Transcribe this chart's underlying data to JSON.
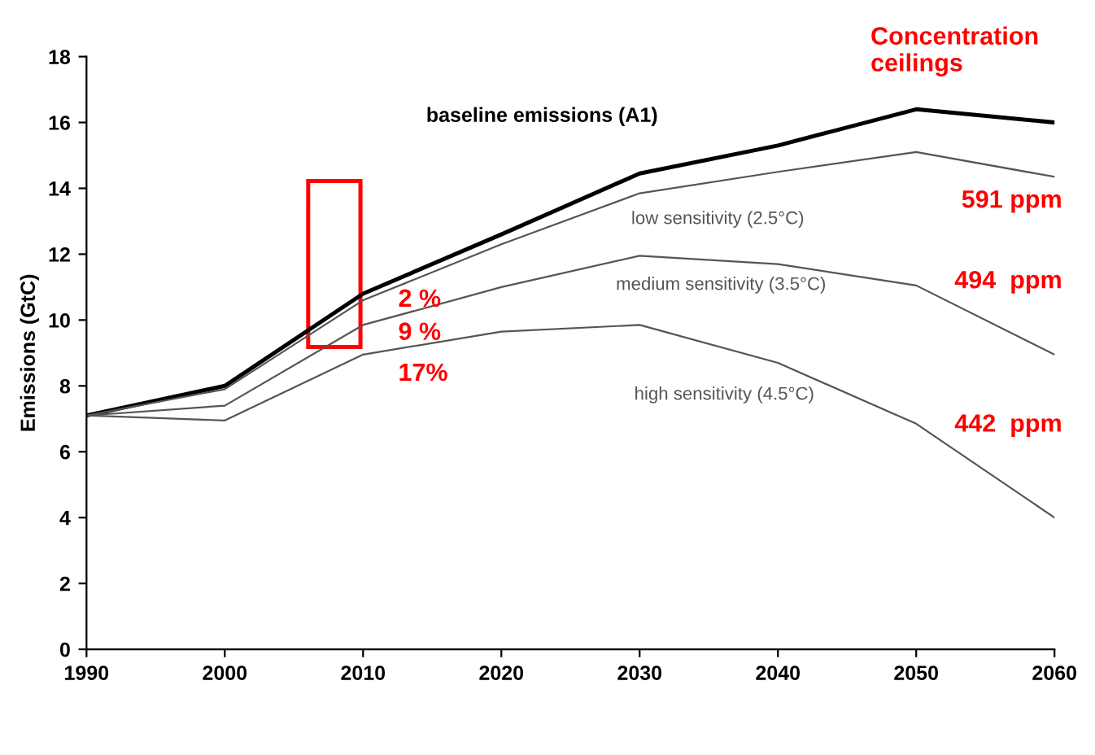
{
  "chart_data": {
    "type": "line",
    "ylabel": "Emissions (GtC)",
    "x": [
      1990,
      2000,
      2010,
      2020,
      2030,
      2040,
      2050,
      2060
    ],
    "series": [
      {
        "name": "baseline emissions (A1)",
        "color": "#000000",
        "values": [
          7.1,
          8.0,
          10.8,
          12.6,
          14.45,
          15.3,
          16.4,
          16.0
        ]
      },
      {
        "name": "low sensitivity (2.5°C)",
        "color": "#555555",
        "values": [
          7.1,
          7.9,
          10.6,
          12.3,
          13.85,
          14.5,
          15.1,
          14.35
        ]
      },
      {
        "name": "medium sensitivity (3.5°C)",
        "color": "#555555",
        "values": [
          7.1,
          7.4,
          9.85,
          11.0,
          11.95,
          11.7,
          11.05,
          8.95
        ]
      },
      {
        "name": "high sensitivity (4.5°C)",
        "color": "#555555",
        "values": [
          7.1,
          6.95,
          8.95,
          9.65,
          9.85,
          8.7,
          6.85,
          4.0
        ]
      }
    ],
    "xlim": [
      1990,
      2060
    ],
    "xticks": [
      1990,
      2000,
      2010,
      2020,
      2030,
      2040,
      2050,
      2060
    ],
    "ylim": [
      0,
      18
    ],
    "yticks": [
      0,
      2,
      4,
      6,
      8,
      10,
      12,
      14,
      16,
      18
    ],
    "grid": false,
    "legend": false,
    "marker": "none",
    "line_style": "solid",
    "annotations": [
      "Concentration\nceilings",
      "591 ppm",
      "494  ppm",
      "442  ppm",
      "2 %",
      "9 %",
      "17%"
    ]
  }
}
